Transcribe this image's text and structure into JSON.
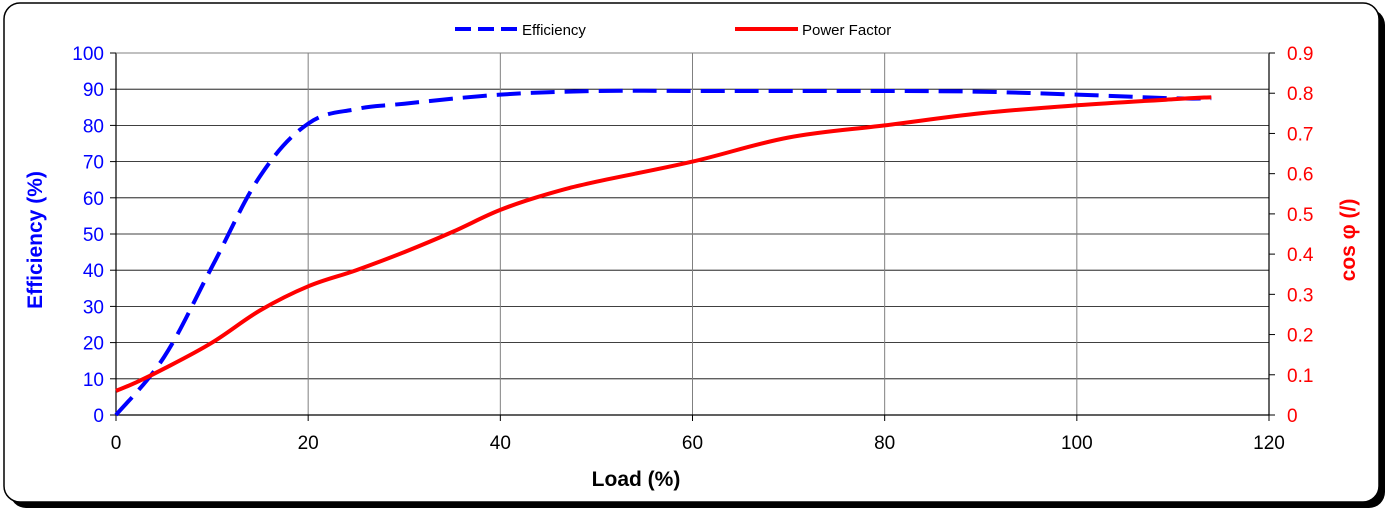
{
  "chart_data": {
    "type": "line",
    "title": "",
    "xlabel": "Load (%)",
    "ylabel_left": "Efficiency (%)",
    "ylabel_right": "cos φ (/)",
    "xlim": [
      0,
      120
    ],
    "ylim_left": [
      0,
      100
    ],
    "ylim_right": [
      0,
      0.9
    ],
    "x_ticks": [
      "0",
      "20",
      "40",
      "60",
      "80",
      "100",
      "120"
    ],
    "y_left_ticks": [
      "0",
      "10",
      "20",
      "30",
      "40",
      "50",
      "60",
      "70",
      "80",
      "90",
      "100"
    ],
    "y_right_ticks": [
      "0",
      "0.1",
      "0.2",
      "0.3",
      "0.4",
      "0.5",
      "0.6",
      "0.7",
      "0.8",
      "0.9"
    ],
    "grid": true,
    "legend_position": "top",
    "series": [
      {
        "name": "Efficiency",
        "axis": "left",
        "color": "#0000ff",
        "style": "dashed",
        "x": [
          0,
          5,
          10,
          15,
          20,
          25,
          30,
          40,
          50,
          60,
          70,
          80,
          90,
          100,
          110,
          114
        ],
        "y": [
          0,
          16,
          41,
          66,
          80.5,
          84.5,
          86,
          88.5,
          89.5,
          89.5,
          89.5,
          89.5,
          89.3,
          88.5,
          87.5,
          87.5
        ]
      },
      {
        "name": "Power Factor",
        "axis": "right",
        "color": "#ff0000",
        "style": "solid",
        "x": [
          0,
          2,
          5,
          10,
          15,
          20,
          25,
          30,
          35,
          40,
          45,
          50,
          60,
          70,
          80,
          90,
          100,
          110,
          114
        ],
        "y": [
          0.06,
          0.08,
          0.115,
          0.18,
          0.26,
          0.32,
          0.36,
          0.405,
          0.455,
          0.51,
          0.55,
          0.58,
          0.63,
          0.69,
          0.72,
          0.75,
          0.77,
          0.785,
          0.79
        ]
      }
    ]
  }
}
